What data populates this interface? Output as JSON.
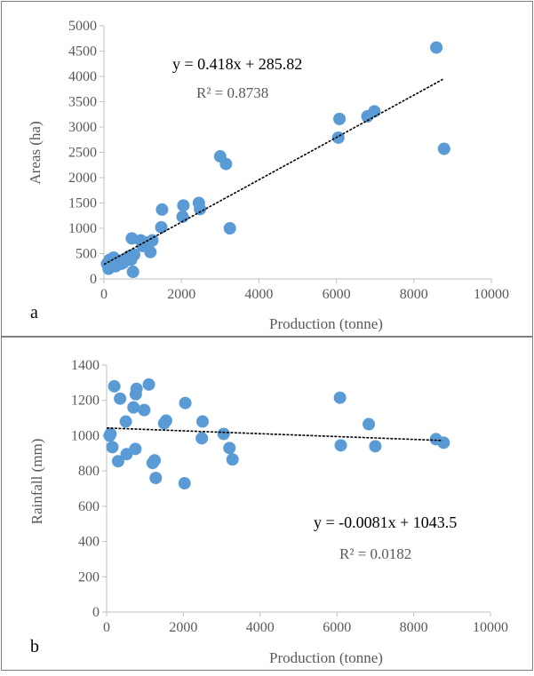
{
  "colors": {
    "marker": "#5b9bd5",
    "trendline": "#1f3864",
    "frame": "#7f7f7f",
    "axis": "#bfbfbf",
    "label_text": "#595959"
  },
  "chart_data": [
    {
      "type": "scatter",
      "panel_label": "a",
      "xlabel": "Production (tonne)",
      "ylabel": "Areas (ha)",
      "xlim": [
        0,
        10000
      ],
      "ylim": [
        0,
        5000
      ],
      "x_ticks": [
        "0",
        "2000",
        "4000",
        "6000",
        "8000",
        "10000"
      ],
      "y_ticks": [
        "0",
        "500",
        "1000",
        "1500",
        "2000",
        "2500",
        "3000",
        "3500",
        "4000",
        "4500",
        "5000"
      ],
      "trendline": {
        "slope": 0.418,
        "intercept": 285.82,
        "x_range": [
          0,
          8750
        ]
      },
      "equation": "y = 0.418x + 285.82",
      "r_squared": "R² = 0.8738",
      "points": [
        [
          80,
          300
        ],
        [
          120,
          200
        ],
        [
          150,
          380
        ],
        [
          200,
          320
        ],
        [
          250,
          420
        ],
        [
          300,
          250
        ],
        [
          350,
          330
        ],
        [
          400,
          360
        ],
        [
          450,
          300
        ],
        [
          500,
          320
        ],
        [
          550,
          380
        ],
        [
          600,
          400
        ],
        [
          650,
          450
        ],
        [
          700,
          380
        ],
        [
          720,
          800
        ],
        [
          750,
          140
        ],
        [
          780,
          480
        ],
        [
          950,
          760
        ],
        [
          1000,
          650
        ],
        [
          1100,
          720
        ],
        [
          1200,
          530
        ],
        [
          1250,
          760
        ],
        [
          1480,
          1020
        ],
        [
          1500,
          1370
        ],
        [
          2030,
          1230
        ],
        [
          2050,
          1450
        ],
        [
          2450,
          1500
        ],
        [
          2480,
          1380
        ],
        [
          3000,
          2420
        ],
        [
          3150,
          2270
        ],
        [
          3250,
          1000
        ],
        [
          6050,
          2790
        ],
        [
          6080,
          3160
        ],
        [
          6800,
          3210
        ],
        [
          6980,
          3310
        ],
        [
          8580,
          4570
        ],
        [
          8780,
          2570
        ]
      ]
    },
    {
      "type": "scatter",
      "panel_label": "b",
      "xlabel": "Production (tonne)",
      "ylabel": "Rainfall (mm)",
      "xlim": [
        0,
        10000
      ],
      "ylim": [
        0,
        1400
      ],
      "x_ticks": [
        "0",
        "2000",
        "4000",
        "6000",
        "8000",
        "10000"
      ],
      "y_ticks": [
        "0",
        "200",
        "400",
        "600",
        "800",
        "1000",
        "1200",
        "1400"
      ],
      "trendline": {
        "slope": -0.0081,
        "intercept": 1043.5,
        "x_range": [
          0,
          8750
        ]
      },
      "equation": "y = -0.0081x + 1043.5",
      "r_squared": "R² = 0.0182",
      "points": [
        [
          80,
          1000
        ],
        [
          100,
          1010
        ],
        [
          150,
          935
        ],
        [
          200,
          1280
        ],
        [
          300,
          855
        ],
        [
          350,
          1210
        ],
        [
          500,
          1080
        ],
        [
          520,
          895
        ],
        [
          700,
          1160
        ],
        [
          750,
          925
        ],
        [
          760,
          1235
        ],
        [
          780,
          1265
        ],
        [
          980,
          1145
        ],
        [
          1100,
          1290
        ],
        [
          1200,
          845
        ],
        [
          1250,
          860
        ],
        [
          1280,
          760
        ],
        [
          1500,
          1070
        ],
        [
          1550,
          1085
        ],
        [
          2030,
          730
        ],
        [
          2050,
          1185
        ],
        [
          2480,
          985
        ],
        [
          2500,
          1080
        ],
        [
          3050,
          1010
        ],
        [
          3200,
          930
        ],
        [
          3280,
          865
        ],
        [
          6080,
          1215
        ],
        [
          6100,
          945
        ],
        [
          6830,
          1065
        ],
        [
          7000,
          940
        ],
        [
          8580,
          980
        ],
        [
          8780,
          960
        ]
      ]
    }
  ]
}
